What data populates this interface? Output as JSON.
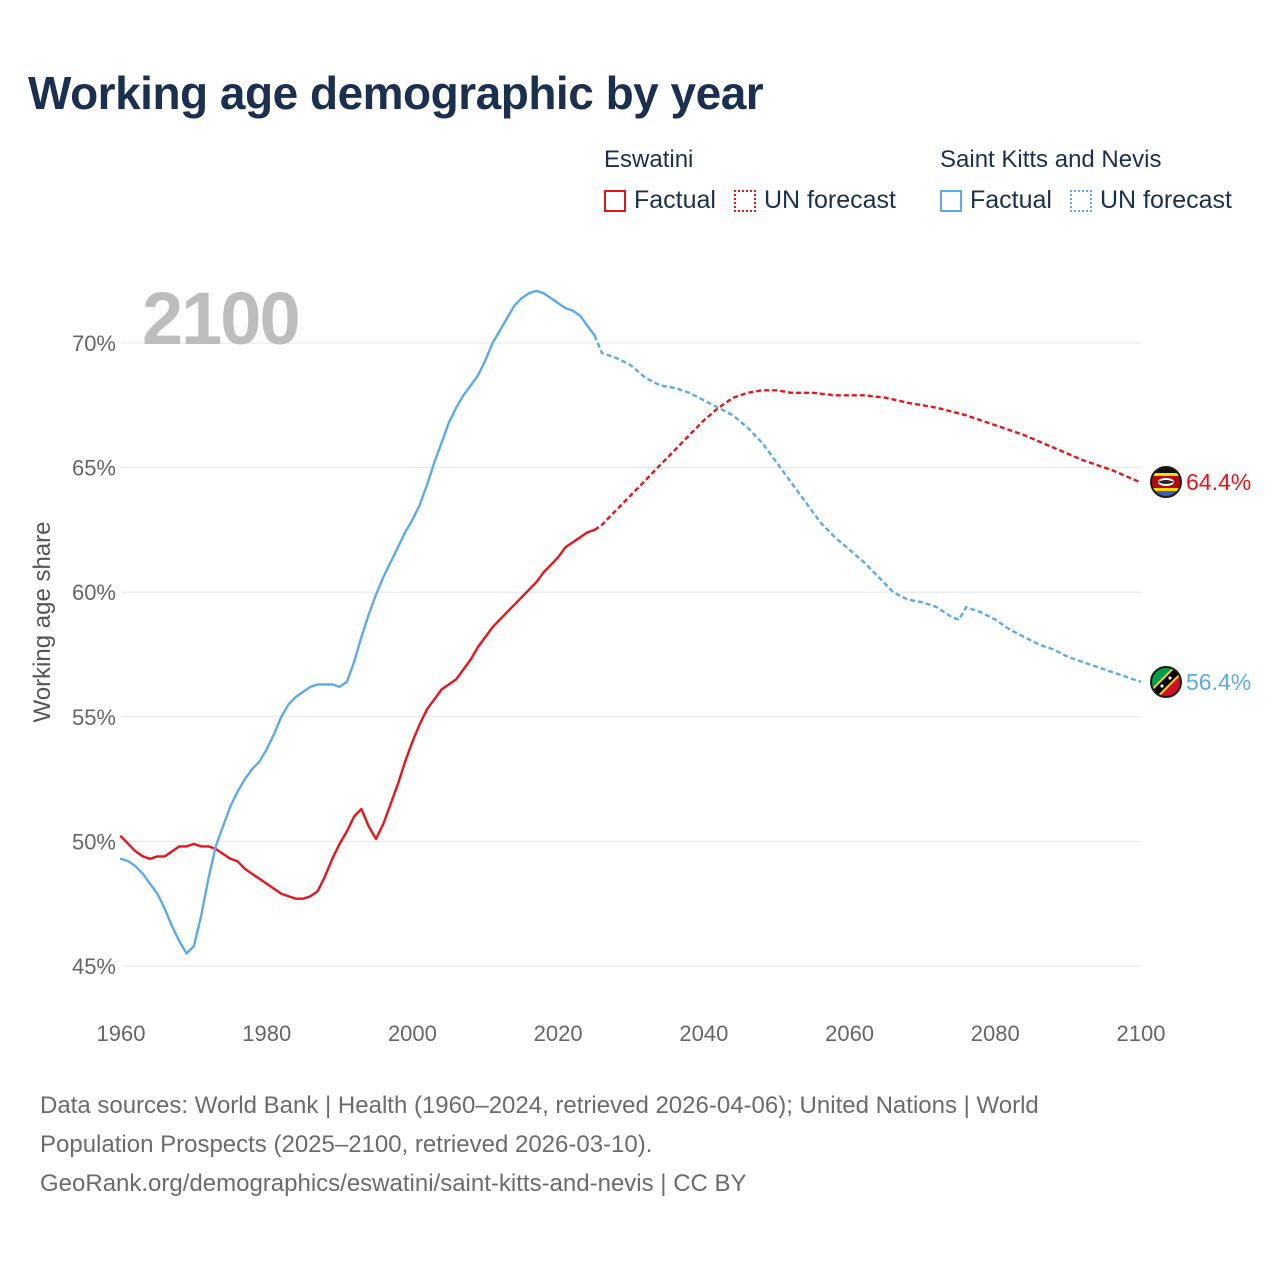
{
  "title": "Working age demographic by year",
  "legend": [
    {
      "group": "Eswatini",
      "color": "#e8141b",
      "items": [
        {
          "label": "Factual",
          "style": "solid"
        },
        {
          "label": "UN forecast",
          "style": "dotted"
        }
      ]
    },
    {
      "group": "Saint Kitts and Nevis",
      "color": "#5ea9e8",
      "items": [
        {
          "label": "Factual",
          "style": "solid"
        },
        {
          "label": "UN forecast",
          "style": "dotted"
        }
      ]
    }
  ],
  "year_watermark": "2100",
  "footer": {
    "line1": "Data sources: World Bank | Health (1960–2024, retrieved 2026-04-06); United Nations | World",
    "line2": "Population Prospects (2025–2100, retrieved 2026-03-10).",
    "line3": "GeoRank.org/demographics/eswatini/saint-kitts-and-nevis | CC BY"
  },
  "chart_data": {
    "type": "line",
    "title": "Working age demographic by year",
    "xlabel": "",
    "ylabel": "Working age share",
    "xlim": [
      1960,
      2100
    ],
    "ylim": [
      44,
      72.5
    ],
    "x_ticks": [
      1960,
      1980,
      2000,
      2020,
      2040,
      2060,
      2080,
      2100
    ],
    "y_ticks": [
      45,
      50,
      55,
      60,
      65,
      70
    ],
    "y_tick_labels": [
      "45%",
      "50%",
      "55%",
      "60%",
      "65%",
      "70%"
    ],
    "forecast_start": 2025,
    "series": [
      {
        "name": "Eswatini",
        "color": "#e8141b",
        "end_label": "64.4%",
        "flag": "eswatini-flag",
        "points": [
          [
            1960,
            50.2
          ],
          [
            1961,
            49.9
          ],
          [
            1962,
            49.6
          ],
          [
            1963,
            49.4
          ],
          [
            1964,
            49.3
          ],
          [
            1965,
            49.4
          ],
          [
            1966,
            49.4
          ],
          [
            1967,
            49.6
          ],
          [
            1968,
            49.8
          ],
          [
            1969,
            49.8
          ],
          [
            1970,
            49.9
          ],
          [
            1971,
            49.8
          ],
          [
            1972,
            49.8
          ],
          [
            1973,
            49.7
          ],
          [
            1974,
            49.5
          ],
          [
            1975,
            49.3
          ],
          [
            1976,
            49.2
          ],
          [
            1977,
            48.9
          ],
          [
            1978,
            48.7
          ],
          [
            1979,
            48.5
          ],
          [
            1980,
            48.3
          ],
          [
            1981,
            48.1
          ],
          [
            1982,
            47.9
          ],
          [
            1983,
            47.8
          ],
          [
            1984,
            47.7
          ],
          [
            1985,
            47.7
          ],
          [
            1986,
            47.8
          ],
          [
            1987,
            48.0
          ],
          [
            1988,
            48.6
          ],
          [
            1989,
            49.3
          ],
          [
            1990,
            49.9
          ],
          [
            1991,
            50.4
          ],
          [
            1992,
            51.0
          ],
          [
            1993,
            51.3
          ],
          [
            1994,
            50.6
          ],
          [
            1995,
            50.1
          ],
          [
            1996,
            50.7
          ],
          [
            1997,
            51.5
          ],
          [
            1998,
            52.3
          ],
          [
            1999,
            53.2
          ],
          [
            2000,
            54.0
          ],
          [
            2001,
            54.7
          ],
          [
            2002,
            55.3
          ],
          [
            2003,
            55.7
          ],
          [
            2004,
            56.1
          ],
          [
            2005,
            56.3
          ],
          [
            2006,
            56.5
          ],
          [
            2007,
            56.9
          ],
          [
            2008,
            57.3
          ],
          [
            2009,
            57.8
          ],
          [
            2010,
            58.2
          ],
          [
            2011,
            58.6
          ],
          [
            2012,
            58.9
          ],
          [
            2013,
            59.2
          ],
          [
            2014,
            59.5
          ],
          [
            2015,
            59.8
          ],
          [
            2016,
            60.1
          ],
          [
            2017,
            60.4
          ],
          [
            2018,
            60.8
          ],
          [
            2019,
            61.1
          ],
          [
            2020,
            61.4
          ],
          [
            2021,
            61.8
          ],
          [
            2022,
            62.0
          ],
          [
            2023,
            62.2
          ],
          [
            2024,
            62.4
          ],
          [
            2025,
            62.5
          ],
          [
            2026,
            62.7
          ],
          [
            2027,
            63.0
          ],
          [
            2028,
            63.3
          ],
          [
            2029,
            63.6
          ],
          [
            2030,
            63.9
          ],
          [
            2032,
            64.5
          ],
          [
            2034,
            65.1
          ],
          [
            2036,
            65.7
          ],
          [
            2038,
            66.3
          ],
          [
            2040,
            66.9
          ],
          [
            2042,
            67.4
          ],
          [
            2044,
            67.8
          ],
          [
            2046,
            68.0
          ],
          [
            2048,
            68.1
          ],
          [
            2050,
            68.1
          ],
          [
            2052,
            68.0
          ],
          [
            2055,
            68.0
          ],
          [
            2058,
            67.9
          ],
          [
            2062,
            67.9
          ],
          [
            2065,
            67.8
          ],
          [
            2068,
            67.6
          ],
          [
            2072,
            67.4
          ],
          [
            2076,
            67.1
          ],
          [
            2080,
            66.7
          ],
          [
            2084,
            66.3
          ],
          [
            2088,
            65.8
          ],
          [
            2092,
            65.3
          ],
          [
            2096,
            64.9
          ],
          [
            2100,
            64.4
          ]
        ]
      },
      {
        "name": "Saint Kitts and Nevis",
        "color": "#5ea9e8",
        "end_label": "56.4%",
        "flag": "saint-kitts-and-nevis-flag",
        "points": [
          [
            1960,
            49.3
          ],
          [
            1961,
            49.2
          ],
          [
            1962,
            49.0
          ],
          [
            1963,
            48.7
          ],
          [
            1964,
            48.3
          ],
          [
            1965,
            47.9
          ],
          [
            1966,
            47.3
          ],
          [
            1967,
            46.6
          ],
          [
            1968,
            46.0
          ],
          [
            1969,
            45.5
          ],
          [
            1970,
            45.8
          ],
          [
            1971,
            47.0
          ],
          [
            1972,
            48.5
          ],
          [
            1973,
            49.8
          ],
          [
            1974,
            50.6
          ],
          [
            1975,
            51.4
          ],
          [
            1976,
            52.0
          ],
          [
            1977,
            52.5
          ],
          [
            1978,
            52.9
          ],
          [
            1979,
            53.2
          ],
          [
            1980,
            53.7
          ],
          [
            1981,
            54.3
          ],
          [
            1982,
            55.0
          ],
          [
            1983,
            55.5
          ],
          [
            1984,
            55.8
          ],
          [
            1985,
            56.0
          ],
          [
            1986,
            56.2
          ],
          [
            1987,
            56.3
          ],
          [
            1988,
            56.3
          ],
          [
            1989,
            56.3
          ],
          [
            1990,
            56.2
          ],
          [
            1991,
            56.4
          ],
          [
            1992,
            57.2
          ],
          [
            1993,
            58.2
          ],
          [
            1994,
            59.1
          ],
          [
            1995,
            59.9
          ],
          [
            1996,
            60.6
          ],
          [
            1997,
            61.2
          ],
          [
            1998,
            61.8
          ],
          [
            1999,
            62.4
          ],
          [
            2000,
            62.9
          ],
          [
            2001,
            63.5
          ],
          [
            2002,
            64.3
          ],
          [
            2003,
            65.2
          ],
          [
            2004,
            66.0
          ],
          [
            2005,
            66.8
          ],
          [
            2006,
            67.4
          ],
          [
            2007,
            67.9
          ],
          [
            2008,
            68.3
          ],
          [
            2009,
            68.7
          ],
          [
            2010,
            69.3
          ],
          [
            2011,
            70.0
          ],
          [
            2012,
            70.5
          ],
          [
            2013,
            71.0
          ],
          [
            2014,
            71.5
          ],
          [
            2015,
            71.8
          ],
          [
            2016,
            72.0
          ],
          [
            2017,
            72.1
          ],
          [
            2018,
            72.0
          ],
          [
            2019,
            71.8
          ],
          [
            2020,
            71.6
          ],
          [
            2021,
            71.4
          ],
          [
            2022,
            71.3
          ],
          [
            2023,
            71.1
          ],
          [
            2024,
            70.7
          ],
          [
            2025,
            70.3
          ],
          [
            2026,
            69.6
          ],
          [
            2028,
            69.4
          ],
          [
            2030,
            69.1
          ],
          [
            2032,
            68.6
          ],
          [
            2034,
            68.3
          ],
          [
            2036,
            68.2
          ],
          [
            2038,
            68.0
          ],
          [
            2040,
            67.7
          ],
          [
            2042,
            67.4
          ],
          [
            2044,
            67.1
          ],
          [
            2046,
            66.6
          ],
          [
            2048,
            66.0
          ],
          [
            2050,
            65.2
          ],
          [
            2052,
            64.4
          ],
          [
            2054,
            63.6
          ],
          [
            2056,
            62.8
          ],
          [
            2058,
            62.2
          ],
          [
            2060,
            61.7
          ],
          [
            2062,
            61.2
          ],
          [
            2064,
            60.6
          ],
          [
            2066,
            60.0
          ],
          [
            2068,
            59.7
          ],
          [
            2070,
            59.6
          ],
          [
            2072,
            59.4
          ],
          [
            2074,
            59.0
          ],
          [
            2075,
            58.9
          ],
          [
            2076,
            59.4
          ],
          [
            2078,
            59.2
          ],
          [
            2080,
            58.9
          ],
          [
            2082,
            58.5
          ],
          [
            2084,
            58.2
          ],
          [
            2086,
            57.9
          ],
          [
            2088,
            57.7
          ],
          [
            2090,
            57.4
          ],
          [
            2094,
            57.0
          ],
          [
            2098,
            56.6
          ],
          [
            2100,
            56.4
          ]
        ]
      }
    ]
  }
}
